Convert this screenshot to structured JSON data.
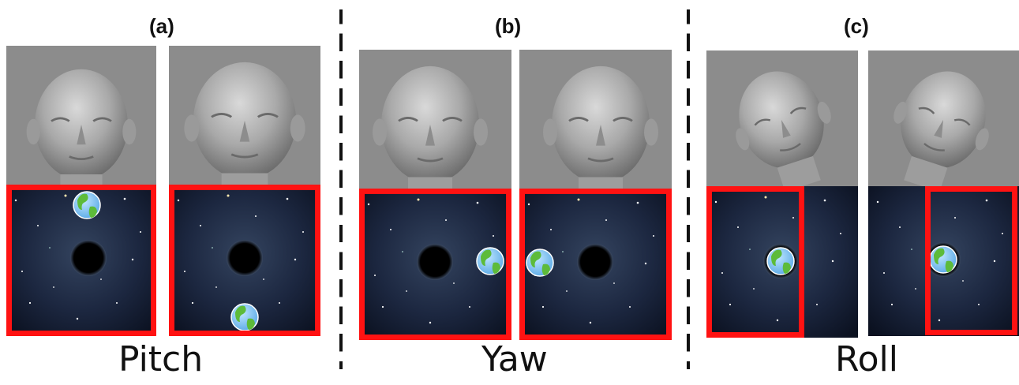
{
  "panels": [
    {
      "label": "(a)",
      "motion": "Pitch"
    },
    {
      "label": "(b)",
      "motion": "Yaw"
    },
    {
      "label": "(c)",
      "motion": "Roll"
    }
  ],
  "colors": {
    "frame": "#ff1212",
    "head_bg": "#8c8c8c",
    "space": "#1b2438",
    "black_hole": "#000000",
    "divider": "#111111"
  },
  "icons": [
    "head-render",
    "starfield",
    "black-hole",
    "earth-globe-icon"
  ]
}
